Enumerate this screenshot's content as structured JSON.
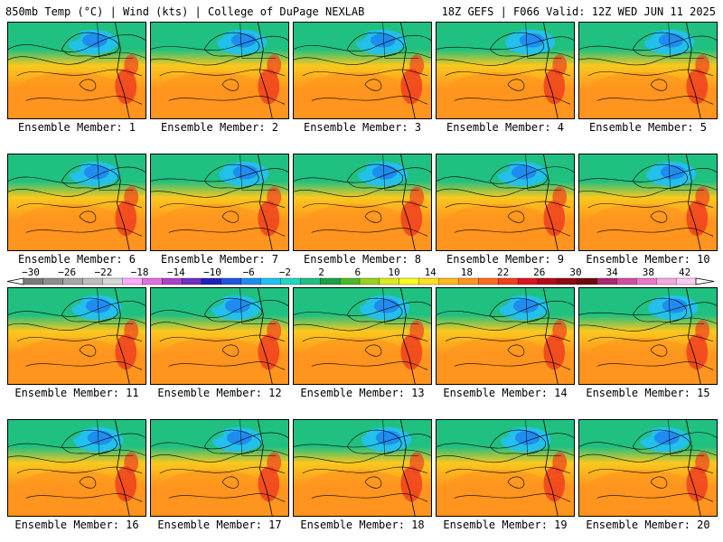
{
  "header": {
    "left": "850mb Temp (°C) | Wind (kts) | College of DuPage NEXLAB",
    "right": "18Z GEFS | F066 Valid: 12Z WED JUN 11 2025"
  },
  "members": [
    "Ensemble Member: 1",
    "Ensemble Member: 2",
    "Ensemble Member: 3",
    "Ensemble Member: 4",
    "Ensemble Member: 5",
    "Ensemble Member: 6",
    "Ensemble Member: 7",
    "Ensemble Member: 8",
    "Ensemble Member: 9",
    "Ensemble Member: 10",
    "Ensemble Member: 11",
    "Ensemble Member: 12",
    "Ensemble Member: 13",
    "Ensemble Member: 14",
    "Ensemble Member: 15",
    "Ensemble Member: 16",
    "Ensemble Member: 17",
    "Ensemble Member: 18",
    "Ensemble Member: 19",
    "Ensemble Member: 20"
  ],
  "colorbar": {
    "ticks": [
      "−30",
      "−26",
      "−22",
      "−18",
      "−14",
      "−10",
      "−6",
      "−2",
      "2",
      "6",
      "10",
      "14",
      "18",
      "22",
      "26",
      "30",
      "34",
      "38",
      "42"
    ],
    "colors": [
      "#7a7a7a",
      "#8e8e8e",
      "#a6a6a6",
      "#bdbdbd",
      "#d6d6d6",
      "#ffaaff",
      "#e070e0",
      "#b040c8",
      "#7030c0",
      "#2020c0",
      "#1f55e0",
      "#1f8cf0",
      "#22c0f5",
      "#23d6c0",
      "#20c080",
      "#1aa048",
      "#4cb826",
      "#96d21e",
      "#dcea1e",
      "#fafa1e",
      "#ffe01e",
      "#ffb81e",
      "#ff941e",
      "#ff6a1e",
      "#f0401e",
      "#dc141e",
      "#b80a14",
      "#900a12",
      "#6e0a0e",
      "#aa2a6e",
      "#d04fa0",
      "#e87ac8",
      "#f4a8e0",
      "#fccaf2"
    ]
  },
  "map_palette": {
    "cold": "#1f8cf0",
    "cool": "#22c0f5",
    "green": "#20c080",
    "warm": "#fac81e",
    "hot": "#ff941e",
    "hottest": "#f0401e"
  }
}
